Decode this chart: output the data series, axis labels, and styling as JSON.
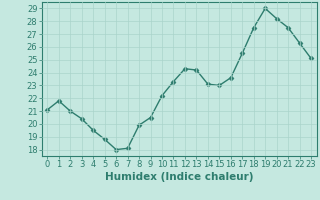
{
  "x": [
    0,
    1,
    2,
    3,
    4,
    5,
    6,
    7,
    8,
    9,
    10,
    11,
    12,
    13,
    14,
    15,
    16,
    17,
    18,
    19,
    20,
    21,
    22,
    23
  ],
  "y": [
    21.1,
    21.8,
    21.0,
    20.4,
    19.5,
    18.8,
    18.0,
    18.1,
    19.9,
    20.5,
    22.2,
    23.3,
    24.3,
    24.2,
    23.1,
    23.0,
    23.6,
    25.5,
    27.5,
    29.0,
    28.2,
    27.5,
    26.3,
    25.1
  ],
  "line_color": "#2e7d6e",
  "marker": "D",
  "markersize": 2.5,
  "linewidth": 1.0,
  "bg_color": "#c5e8e0",
  "grid_color": "#aad4cb",
  "xlabel": "Humidex (Indice chaleur)",
  "xlabel_fontsize": 7.5,
  "xlim": [
    -0.5,
    23.5
  ],
  "ylim": [
    17.5,
    29.5
  ],
  "yticks": [
    18,
    19,
    20,
    21,
    22,
    23,
    24,
    25,
    26,
    27,
    28,
    29
  ],
  "xticks": [
    0,
    1,
    2,
    3,
    4,
    5,
    6,
    7,
    8,
    9,
    10,
    11,
    12,
    13,
    14,
    15,
    16,
    17,
    18,
    19,
    20,
    21,
    22,
    23
  ],
  "tick_fontsize": 6,
  "tick_color": "#2e7d6e"
}
